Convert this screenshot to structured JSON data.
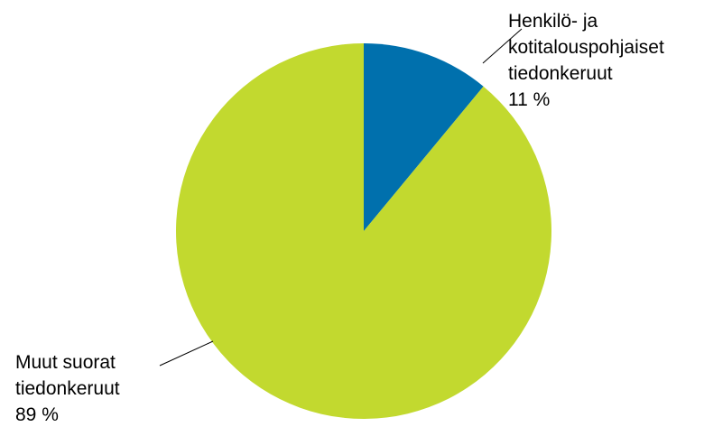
{
  "chart_data": {
    "type": "pie",
    "slices": [
      {
        "label_lines": [
          "Henkilö- ja",
          "kotitalouspohjaiset",
          "tiedonkeruut"
        ],
        "value": 11,
        "value_label": "11 %",
        "color": "#0070ad"
      },
      {
        "label_lines": [
          "Muut suorat",
          "tiedonkeruut"
        ],
        "value": 89,
        "value_label": "89 %",
        "color": "#c2d92f"
      }
    ],
    "start_angle_deg": 0,
    "direction": "clockwise",
    "legend": "none",
    "title": ""
  }
}
